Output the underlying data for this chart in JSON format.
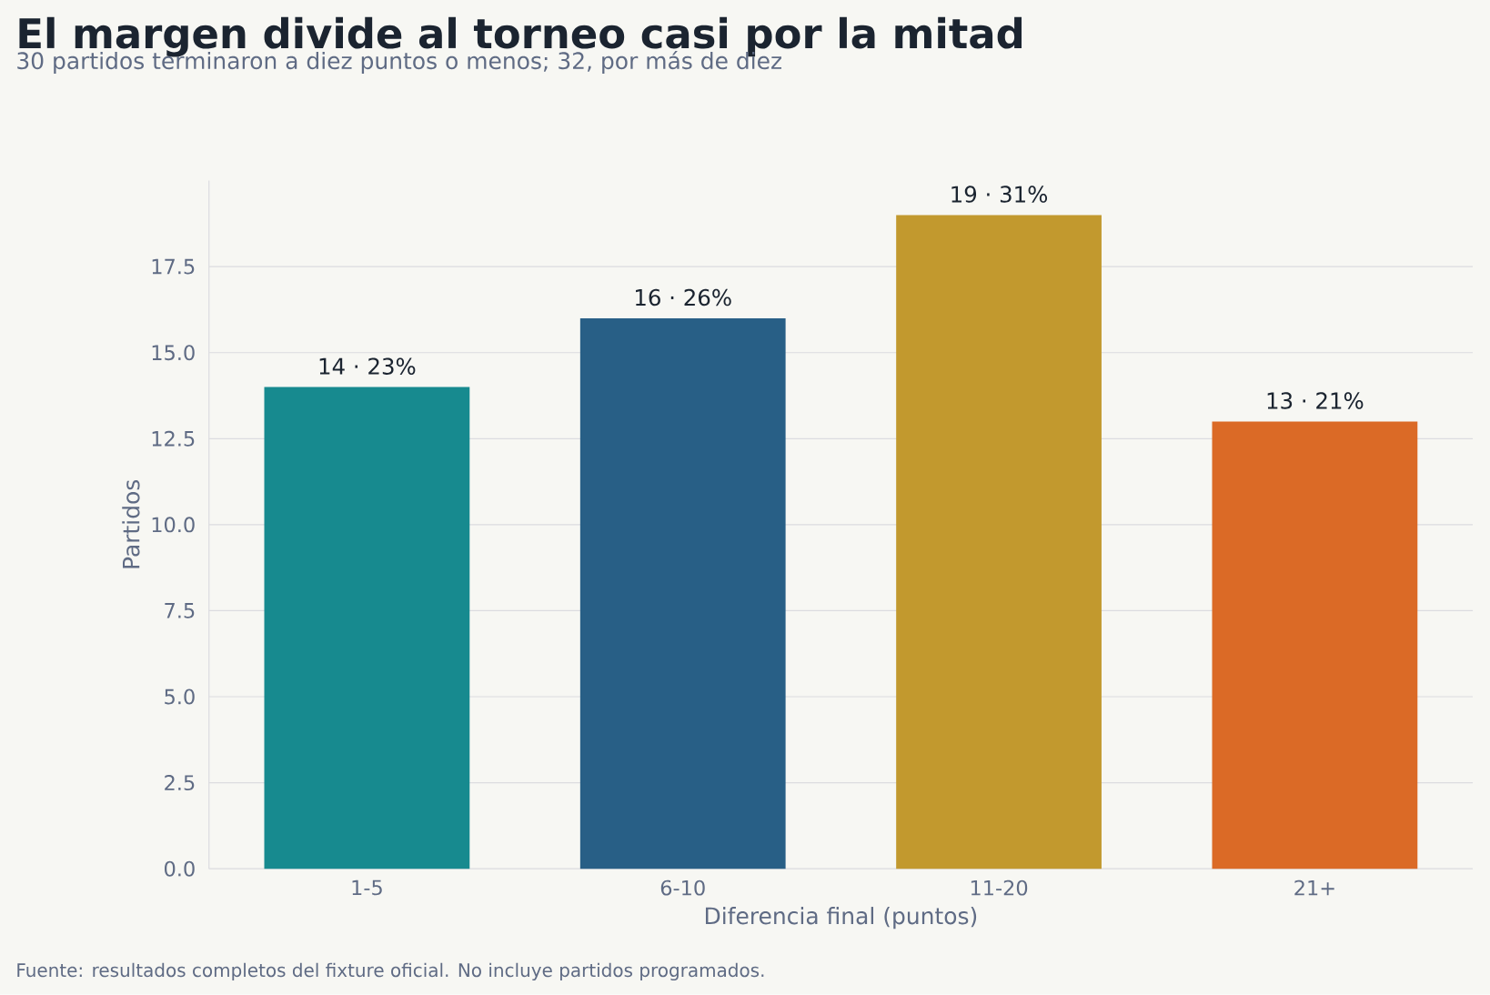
{
  "chart_data": {
    "type": "bar",
    "title": "El margen divide al torneo casi por la mitad",
    "subtitle": "30 partidos terminaron a diez puntos o menos; 32, por más de diez",
    "xlabel": "Diferencia final (puntos)",
    "ylabel": "Partidos",
    "categories": [
      "1-5",
      "6-10",
      "11-20",
      "21+"
    ],
    "values": [
      14,
      16,
      19,
      13
    ],
    "colors": [
      "#178a8f",
      "#285f86",
      "#c2992e",
      "#db6a26"
    ],
    "value_labels": [
      "14 · 23%",
      "16 · 26%",
      "19 · 31%",
      "13 · 21%"
    ],
    "ylim": [
      0,
      20
    ],
    "yticks": [
      {
        "value": 0,
        "label": "0.0"
      },
      2.5,
      {
        "value": 5,
        "label": "5.0"
      },
      7.5,
      {
        "value": 10,
        "label": "10.0"
      },
      12.5,
      {
        "value": 15,
        "label": "15.0"
      },
      17.5
    ],
    "grid": "y",
    "annotations": [
      "Fuente: resultados completos del fixture oficial. No incluye partidos programados."
    ]
  }
}
